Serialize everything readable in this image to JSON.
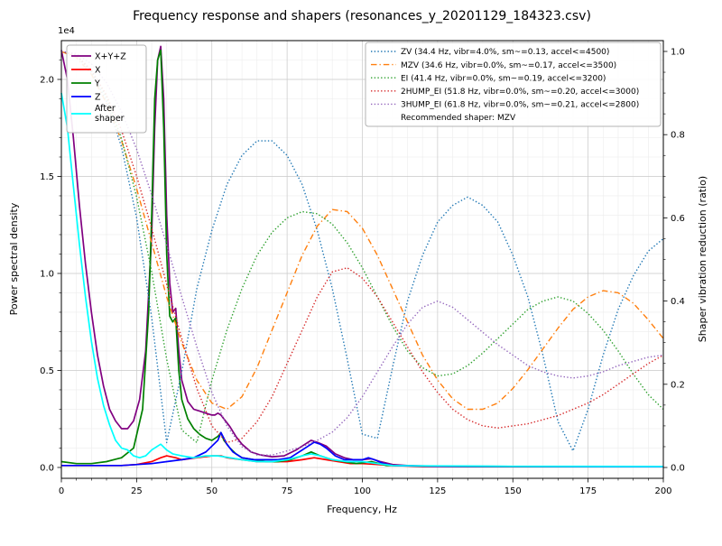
{
  "chart_data": {
    "type": "line",
    "title": "Frequency response and shapers (resonances_y_20201129_184323.csv)",
    "xlabel": "Frequency, Hz",
    "ylabel_left": "Power spectral density",
    "ylabel_right": "Shaper vibration reduction (ratio)",
    "y_left_multiplier": "1e4",
    "x_range": [
      0,
      200
    ],
    "y_left_range": [
      -0.056,
      2.2
    ],
    "y_right_range": [
      -0.026,
      1.026
    ],
    "x_ticks": [
      "0",
      "25",
      "50",
      "75",
      "100",
      "125",
      "150",
      "175",
      "200"
    ],
    "y_left_ticks": [
      "0.0",
      "0.5",
      "1.0",
      "1.5",
      "2.0"
    ],
    "y_right_ticks": [
      "0.0",
      "0.2",
      "0.4",
      "0.6",
      "0.8",
      "1.0"
    ],
    "grid": true,
    "legend_positions": [
      "upper-left",
      "upper-right"
    ],
    "recommended": "Recommended shaper: MZV",
    "psd_series": [
      {
        "name": "X+Y+Z",
        "label": "X+Y+Z",
        "color": "#800080",
        "style": "solid",
        "x": [
          0,
          2,
          4,
          6,
          8,
          10,
          12,
          14,
          16,
          18,
          20,
          22,
          24,
          26,
          28,
          30,
          31,
          32,
          33,
          34,
          35,
          36,
          37,
          38,
          39,
          40,
          42,
          44,
          46,
          48,
          50,
          51,
          52,
          53,
          54,
          56,
          58,
          60,
          63,
          66,
          70,
          74,
          78,
          81,
          83,
          85,
          88,
          91,
          94,
          97,
          100,
          103,
          106,
          110,
          115,
          120,
          130,
          150,
          175,
          200
        ],
        "y": [
          2.15,
          2.0,
          1.7,
          1.35,
          1.05,
          0.8,
          0.58,
          0.42,
          0.3,
          0.24,
          0.2,
          0.2,
          0.24,
          0.35,
          0.6,
          1.2,
          1.75,
          2.1,
          2.17,
          1.9,
          1.3,
          0.95,
          0.8,
          0.82,
          0.6,
          0.45,
          0.34,
          0.3,
          0.29,
          0.28,
          0.27,
          0.27,
          0.28,
          0.27,
          0.25,
          0.21,
          0.16,
          0.12,
          0.08,
          0.065,
          0.055,
          0.06,
          0.09,
          0.12,
          0.14,
          0.13,
          0.11,
          0.07,
          0.05,
          0.04,
          0.04,
          0.045,
          0.03,
          0.015,
          0.01,
          0.008,
          0.006,
          0.005,
          0.004,
          0.004
        ]
      },
      {
        "name": "X",
        "label": "X",
        "color": "#ff0000",
        "style": "solid",
        "x": [
          0,
          10,
          20,
          25,
          30,
          33,
          35,
          38,
          40,
          45,
          50,
          53,
          55,
          60,
          65,
          70,
          75,
          80,
          84,
          88,
          92,
          96,
          100,
          105,
          110,
          120,
          150,
          200
        ],
        "y": [
          0.01,
          0.01,
          0.01,
          0.015,
          0.03,
          0.05,
          0.06,
          0.05,
          0.04,
          0.05,
          0.06,
          0.06,
          0.05,
          0.04,
          0.03,
          0.03,
          0.03,
          0.04,
          0.05,
          0.04,
          0.03,
          0.02,
          0.02,
          0.015,
          0.01,
          0.005,
          0.004,
          0.004
        ]
      },
      {
        "name": "Y",
        "label": "Y",
        "color": "#008000",
        "style": "solid",
        "x": [
          0,
          5,
          10,
          15,
          20,
          24,
          27,
          29,
          30,
          31,
          32,
          33,
          34,
          35,
          36,
          37,
          38,
          39,
          40,
          42,
          44,
          46,
          48,
          50,
          52,
          53,
          54,
          56,
          58,
          60,
          64,
          68,
          72,
          76,
          80,
          83,
          86,
          90,
          94,
          98,
          103,
          108,
          115,
          125,
          150,
          200
        ],
        "y": [
          0.03,
          0.02,
          0.02,
          0.03,
          0.05,
          0.1,
          0.3,
          0.8,
          1.3,
          1.9,
          2.1,
          2.15,
          1.75,
          1.1,
          0.78,
          0.75,
          0.77,
          0.5,
          0.35,
          0.25,
          0.2,
          0.17,
          0.15,
          0.14,
          0.16,
          0.18,
          0.14,
          0.1,
          0.07,
          0.05,
          0.04,
          0.03,
          0.03,
          0.04,
          0.06,
          0.08,
          0.06,
          0.04,
          0.03,
          0.02,
          0.03,
          0.01,
          0.008,
          0.006,
          0.005,
          0.004
        ]
      },
      {
        "name": "Z",
        "label": "Z",
        "color": "#0000ff",
        "style": "solid",
        "x": [
          0,
          10,
          20,
          30,
          35,
          40,
          44,
          48,
          50,
          52,
          53,
          54,
          55,
          57,
          60,
          64,
          68,
          72,
          76,
          80,
          82,
          84,
          86,
          88,
          91,
          94,
          97,
          100,
          102,
          104,
          107,
          110,
          115,
          125,
          150,
          200
        ],
        "y": [
          0.01,
          0.01,
          0.01,
          0.02,
          0.03,
          0.04,
          0.05,
          0.08,
          0.11,
          0.14,
          0.18,
          0.15,
          0.12,
          0.08,
          0.05,
          0.04,
          0.04,
          0.04,
          0.05,
          0.09,
          0.11,
          0.13,
          0.12,
          0.1,
          0.06,
          0.04,
          0.04,
          0.04,
          0.05,
          0.04,
          0.02,
          0.01,
          0.008,
          0.006,
          0.005,
          0.004
        ]
      },
      {
        "name": "After shaper",
        "label": "After shaper",
        "label_lines": [
          "After",
          "shaper"
        ],
        "color": "#00ffff",
        "style": "solid",
        "x": [
          0,
          2,
          4,
          6,
          8,
          10,
          12,
          14,
          16,
          18,
          20,
          22,
          24,
          26,
          28,
          30,
          32,
          33,
          35,
          37,
          40,
          44,
          48,
          52,
          56,
          60,
          65,
          70,
          75,
          80,
          83,
          86,
          90,
          95,
          100,
          105,
          110,
          120,
          150,
          200
        ],
        "y": [
          1.93,
          1.75,
          1.45,
          1.15,
          0.88,
          0.65,
          0.46,
          0.32,
          0.22,
          0.14,
          0.1,
          0.09,
          0.06,
          0.05,
          0.06,
          0.09,
          0.11,
          0.12,
          0.09,
          0.07,
          0.06,
          0.05,
          0.06,
          0.06,
          0.05,
          0.04,
          0.03,
          0.03,
          0.04,
          0.06,
          0.07,
          0.06,
          0.04,
          0.03,
          0.03,
          0.02,
          0.01,
          0.008,
          0.006,
          0.005
        ]
      }
    ],
    "shaper_x": [
      0,
      5,
      10,
      15,
      20,
      25,
      30,
      35,
      40,
      45,
      50,
      55,
      60,
      65,
      70,
      75,
      80,
      85,
      90,
      95,
      100,
      105,
      110,
      115,
      120,
      125,
      130,
      135,
      140,
      145,
      150,
      155,
      160,
      165,
      170,
      175,
      180,
      185,
      190,
      195,
      200
    ],
    "shaper_series": [
      {
        "name": "ZV",
        "label": "ZV (34.4 Hz, vibr=4.0%, sm~=0.13, accel<=4500)",
        "color": "#1f77b4",
        "style": "dotted",
        "y": [
          1.0,
          0.99,
          0.95,
          0.88,
          0.77,
          0.6,
          0.36,
          0.06,
          0.23,
          0.43,
          0.57,
          0.68,
          0.75,
          0.785,
          0.785,
          0.75,
          0.68,
          0.57,
          0.43,
          0.26,
          0.08,
          0.07,
          0.24,
          0.4,
          0.51,
          0.59,
          0.63,
          0.65,
          0.63,
          0.59,
          0.51,
          0.41,
          0.27,
          0.11,
          0.04,
          0.14,
          0.27,
          0.38,
          0.46,
          0.52,
          0.55
        ]
      },
      {
        "name": "MZV",
        "label": "MZV (34.6 Hz, vibr=0.0%, sm~=0.17, accel<=3500)",
        "color": "#ff7f0e",
        "style": "dashdot",
        "y": [
          1.0,
          0.985,
          0.945,
          0.875,
          0.785,
          0.67,
          0.54,
          0.41,
          0.3,
          0.21,
          0.155,
          0.14,
          0.17,
          0.24,
          0.33,
          0.42,
          0.51,
          0.58,
          0.62,
          0.615,
          0.575,
          0.51,
          0.43,
          0.35,
          0.27,
          0.21,
          0.165,
          0.14,
          0.14,
          0.155,
          0.19,
          0.235,
          0.285,
          0.335,
          0.38,
          0.41,
          0.425,
          0.42,
          0.395,
          0.355,
          0.31
        ]
      },
      {
        "name": "EI",
        "label": "EI (41.4 Hz, vibr=0.0%, sm~=0.19, accel<=3200)",
        "color": "#2ca02c",
        "style": "dotted",
        "y": [
          1.0,
          0.99,
          0.955,
          0.89,
          0.79,
          0.65,
          0.47,
          0.26,
          0.09,
          0.06,
          0.21,
          0.33,
          0.43,
          0.51,
          0.565,
          0.6,
          0.615,
          0.61,
          0.585,
          0.54,
          0.48,
          0.41,
          0.34,
          0.28,
          0.24,
          0.22,
          0.225,
          0.245,
          0.275,
          0.31,
          0.345,
          0.38,
          0.4,
          0.41,
          0.4,
          0.37,
          0.33,
          0.28,
          0.225,
          0.175,
          0.14
        ]
      },
      {
        "name": "2HUMP_EI",
        "label": "2HUMP_EI (51.8 Hz, vibr=0.0%, sm~=0.20, accel<=3000)",
        "color": "#d62728",
        "style": "dotted",
        "y": [
          1.0,
          0.99,
          0.955,
          0.895,
          0.81,
          0.7,
          0.575,
          0.44,
          0.31,
          0.19,
          0.1,
          0.06,
          0.07,
          0.11,
          0.17,
          0.25,
          0.33,
          0.41,
          0.47,
          0.48,
          0.455,
          0.41,
          0.35,
          0.29,
          0.23,
          0.18,
          0.14,
          0.115,
          0.1,
          0.095,
          0.1,
          0.105,
          0.115,
          0.125,
          0.14,
          0.155,
          0.175,
          0.2,
          0.225,
          0.25,
          0.27
        ]
      },
      {
        "name": "3HUMP_EI",
        "label": "3HUMP_EI (61.8 Hz, vibr=0.0%, sm~=0.21, accel<=2800)",
        "color": "#9467bd",
        "style": "dotted",
        "y": [
          1.0,
          0.995,
          0.97,
          0.925,
          0.855,
          0.765,
          0.655,
          0.535,
          0.41,
          0.29,
          0.18,
          0.1,
          0.05,
          0.03,
          0.03,
          0.04,
          0.05,
          0.065,
          0.085,
          0.12,
          0.17,
          0.23,
          0.29,
          0.345,
          0.385,
          0.4,
          0.385,
          0.355,
          0.325,
          0.295,
          0.27,
          0.245,
          0.23,
          0.22,
          0.215,
          0.22,
          0.23,
          0.245,
          0.255,
          0.265,
          0.27
        ]
      }
    ]
  }
}
